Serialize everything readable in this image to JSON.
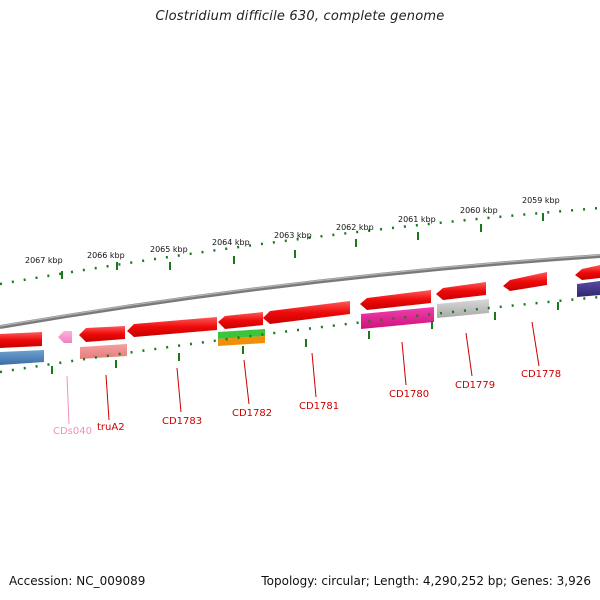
{
  "title": "Clostridium difficile 630, complete genome",
  "footer": {
    "accession": "Accession: NC_009089",
    "summary": "Topology: circular; Length: 4,290,252 bp; Genes: 3,926"
  },
  "colors": {
    "backbone": "#8a8a8a",
    "tick": "#1a7a1a",
    "cds": "#ee1111",
    "label": "#cc0000",
    "label_faint": "#f090c0",
    "leader": "#cc0000"
  },
  "kbp_labels": [
    "2067 kbp",
    "2066 kbp",
    "2065 kbp",
    "2064 kbp",
    "2063 kbp",
    "2062 kbp",
    "2061 kbp",
    "2060 kbp",
    "2059 kbp"
  ],
  "gene_labels": [
    "CDs040",
    "truA2",
    "CD1783",
    "CD1782",
    "CD1781",
    "CD1780",
    "CD1779",
    "CD1778"
  ]
}
